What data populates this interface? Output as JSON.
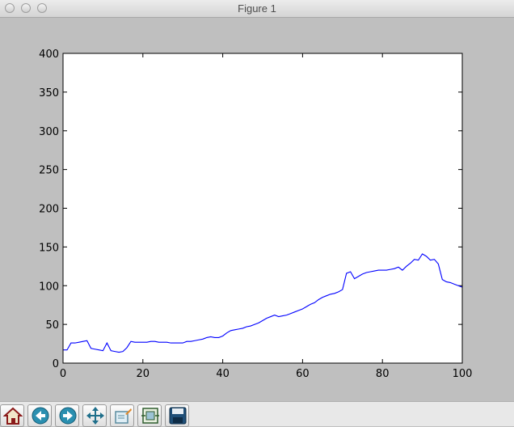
{
  "window": {
    "title": "Figure 1"
  },
  "toolbar": {
    "buttons": [
      {
        "name": "home-button",
        "icon": "home-icon"
      },
      {
        "name": "back-button",
        "icon": "arrow-left-icon"
      },
      {
        "name": "forward-button",
        "icon": "arrow-right-icon"
      },
      {
        "name": "pan-button",
        "icon": "move-arrows-icon"
      },
      {
        "name": "zoom-rect-button",
        "icon": "zoom-rect-icon"
      },
      {
        "name": "subplots-button",
        "icon": "subplots-icon"
      },
      {
        "name": "save-button",
        "icon": "save-disk-icon"
      }
    ]
  },
  "chart_data": {
    "type": "line",
    "title": "",
    "xlabel": "",
    "ylabel": "",
    "xlim": [
      0,
      100
    ],
    "ylim": [
      0,
      400
    ],
    "xticks": [
      "0",
      "20",
      "40",
      "60",
      "80",
      "100"
    ],
    "yticks": [
      "0",
      "50",
      "100",
      "150",
      "200",
      "250",
      "300",
      "350",
      "400"
    ],
    "grid": false,
    "line_color": "#0000ff",
    "series": [
      {
        "x": [
          0,
          1,
          2,
          3,
          4,
          5,
          6,
          7,
          8,
          9,
          10,
          11,
          12,
          13,
          14,
          15,
          16,
          17,
          18,
          19,
          20,
          21,
          22,
          23,
          24,
          25,
          26,
          27,
          28,
          29,
          30,
          31,
          32,
          33,
          34,
          35,
          36,
          37,
          38,
          39,
          40,
          41,
          42,
          43,
          44,
          45,
          46,
          47,
          48,
          49,
          50,
          51,
          52,
          53,
          54,
          55,
          56,
          57,
          58,
          59,
          60,
          61,
          62,
          63,
          64,
          65,
          66,
          67,
          68,
          69,
          70,
          71,
          72,
          73,
          74,
          75,
          76,
          77,
          78,
          79,
          80,
          81,
          82,
          83,
          84,
          85,
          86,
          87,
          88,
          89,
          90,
          91,
          92,
          93,
          94,
          95,
          96,
          97,
          98,
          99,
          100
        ],
        "values": [
          17,
          17,
          26,
          26,
          27,
          28,
          29,
          19,
          18,
          17,
          16,
          26,
          16,
          15,
          14,
          15,
          20,
          28,
          27,
          27,
          27,
          27,
          28,
          28,
          27,
          27,
          27,
          26,
          26,
          26,
          26,
          28,
          28,
          29,
          30,
          31,
          33,
          34,
          33,
          33,
          35,
          39,
          42,
          43,
          44,
          45,
          47,
          48,
          50,
          52,
          55,
          58,
          60,
          62,
          60,
          61,
          62,
          64,
          66,
          68,
          70,
          73,
          76,
          78,
          82,
          85,
          87,
          89,
          90,
          92,
          95,
          116,
          118,
          109,
          112,
          115,
          117,
          118,
          119,
          120,
          120,
          120,
          121,
          122,
          124,
          120,
          125,
          129,
          134,
          133,
          141,
          138,
          133,
          134,
          128,
          108,
          105,
          104,
          102,
          100,
          98
        ]
      }
    ]
  }
}
